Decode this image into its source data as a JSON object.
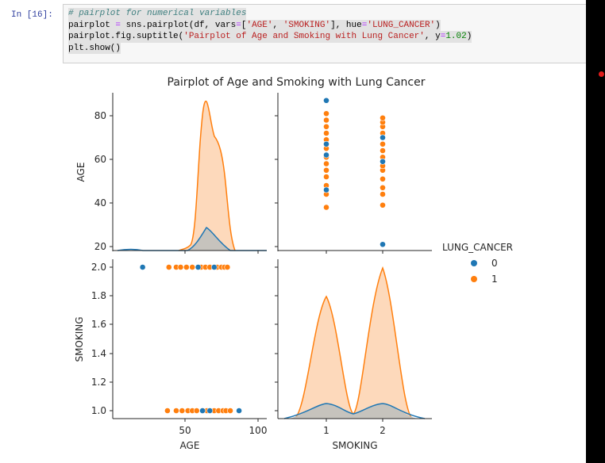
{
  "notebook": {
    "prompt": "In [16]:",
    "code_lines": [
      {
        "parts": [
          {
            "t": "# pairplot for numerical variables",
            "c": "cm"
          }
        ]
      },
      {
        "parts": [
          {
            "t": "pairplot ",
            "c": ""
          },
          {
            "t": "=",
            "c": "op"
          },
          {
            "t": " sns.pairplot(df, vars",
            "c": ""
          },
          {
            "t": "=",
            "c": "op"
          },
          {
            "t": "[",
            "c": ""
          },
          {
            "t": "'AGE'",
            "c": "str"
          },
          {
            "t": ", ",
            "c": ""
          },
          {
            "t": "'SMOKING'",
            "c": "str"
          },
          {
            "t": "], hue",
            "c": ""
          },
          {
            "t": "=",
            "c": "op"
          },
          {
            "t": "'LUNG_CANCER'",
            "c": "str"
          },
          {
            "t": ")",
            "c": ""
          }
        ]
      },
      {
        "parts": [
          {
            "t": "pairplot.fig.suptitle(",
            "c": ""
          },
          {
            "t": "'Pairplot of Age and Smoking with Lung Cancer'",
            "c": "str"
          },
          {
            "t": ", y",
            "c": ""
          },
          {
            "t": "=",
            "c": "op"
          },
          {
            "t": "1.02",
            "c": "num"
          },
          {
            "t": ")",
            "c": ""
          }
        ]
      },
      {
        "parts": [
          {
            "t": "plt.show()",
            "c": ""
          }
        ]
      }
    ]
  },
  "colors": {
    "class0": "#1f77b4",
    "class1": "#ff7f0e",
    "kde_fill1": "#fdd9bb",
    "kde_fill0": "#c6c3bd",
    "sidebar": "#000000",
    "dot": "#e31b1b"
  },
  "chart_data": {
    "type": "scatter",
    "title": "Pairplot of Age and Smoking with Lung Cancer",
    "variables": [
      "AGE",
      "SMOKING"
    ],
    "hue": "LUNG_CANCER",
    "legend": {
      "title": "LUNG_CANCER",
      "entries": [
        {
          "label": "0",
          "color": "#1f77b4"
        },
        {
          "label": "1",
          "color": "#ff7f0e"
        }
      ],
      "position": "right"
    },
    "panels": [
      {
        "row": 0,
        "col": 0,
        "kind": "kde",
        "variable": "AGE",
        "ylabel": "AGE",
        "yticks": [
          20,
          40,
          60,
          80
        ],
        "series": [
          {
            "name": "1",
            "peak_x": 62,
            "peak_density_rel": 1.0,
            "shoulder_x": 68
          },
          {
            "name": "0",
            "peak_x": 61,
            "peak_density_rel": 0.33
          }
        ]
      },
      {
        "row": 0,
        "col": 1,
        "kind": "scatter",
        "x": "SMOKING",
        "y": "AGE",
        "series": [
          {
            "name": "0",
            "points": [
              [
                1,
                87
              ],
              [
                1,
                67
              ],
              [
                1,
                62
              ],
              [
                1,
                46
              ],
              [
                2,
                21
              ],
              [
                2,
                59
              ],
              [
                2,
                70
              ]
            ]
          },
          {
            "name": "1",
            "points": [
              [
                1,
                38
              ],
              [
                1,
                44
              ],
              [
                1,
                48
              ],
              [
                1,
                52
              ],
              [
                1,
                55
              ],
              [
                1,
                58
              ],
              [
                1,
                61
              ],
              [
                1,
                65
              ],
              [
                1,
                69
              ],
              [
                1,
                72
              ],
              [
                1,
                75
              ],
              [
                1,
                78
              ],
              [
                1,
                81
              ],
              [
                2,
                39
              ],
              [
                2,
                44
              ],
              [
                2,
                47
              ],
              [
                2,
                51
              ],
              [
                2,
                55
              ],
              [
                2,
                57
              ],
              [
                2,
                61
              ],
              [
                2,
                64
              ],
              [
                2,
                67
              ],
              [
                2,
                72
              ],
              [
                2,
                75
              ],
              [
                2,
                77
              ],
              [
                2,
                79
              ]
            ]
          }
        ]
      },
      {
        "row": 1,
        "col": 0,
        "kind": "scatter",
        "x": "AGE",
        "y": "SMOKING",
        "xlabel": "AGE",
        "ylabel": "SMOKING",
        "xticks": [
          50,
          100
        ],
        "yticks": [
          1.0,
          1.2,
          1.4,
          1.6,
          1.8,
          2.0
        ],
        "series": [
          {
            "name": "0",
            "points": [
              [
                21,
                2
              ],
              [
                59,
                2
              ],
              [
                70,
                2
              ],
              [
                62,
                1
              ],
              [
                67,
                1
              ],
              [
                87,
                1
              ]
            ]
          },
          {
            "name": "1",
            "points": [
              [
                39,
                2
              ],
              [
                44,
                2
              ],
              [
                47,
                2
              ],
              [
                51,
                2
              ],
              [
                55,
                2
              ],
              [
                61,
                2
              ],
              [
                64,
                2
              ],
              [
                67,
                2
              ],
              [
                72,
                2
              ],
              [
                75,
                2
              ],
              [
                77,
                2
              ],
              [
                79,
                2
              ],
              [
                38,
                1
              ],
              [
                44,
                1
              ],
              [
                48,
                1
              ],
              [
                52,
                1
              ],
              [
                55,
                1
              ],
              [
                58,
                1
              ],
              [
                65,
                1
              ],
              [
                70,
                1
              ],
              [
                73,
                1
              ],
              [
                76,
                1
              ],
              [
                78,
                1
              ],
              [
                81,
                1
              ]
            ]
          }
        ]
      },
      {
        "row": 1,
        "col": 1,
        "kind": "kde",
        "variable": "SMOKING",
        "xlabel": "SMOKING",
        "xticks": [
          1,
          2
        ],
        "series": [
          {
            "name": "1",
            "peaks": [
              [
                1,
                0.9
              ],
              [
                2,
                1.0
              ]
            ]
          },
          {
            "name": "0",
            "peaks": [
              [
                1,
                0.1
              ],
              [
                2,
                0.1
              ]
            ]
          }
        ]
      }
    ]
  },
  "labels": {
    "title": "Pairplot of Age and Smoking with Lung Cancer",
    "age": "AGE",
    "smoking": "SMOKING",
    "legend_title": "LUNG_CANCER",
    "legend_0": "0",
    "legend_1": "1",
    "yt_80": "80",
    "yt_60": "60",
    "yt_40": "40",
    "yt_20": "20",
    "yt_20_": "2.0",
    "yt_18": "1.8",
    "yt_16": "1.6",
    "yt_14": "1.4",
    "yt_12": "1.2",
    "yt_10": "1.0",
    "xt_50": "50",
    "xt_100": "100",
    "xt_1": "1",
    "xt_2": "2"
  }
}
